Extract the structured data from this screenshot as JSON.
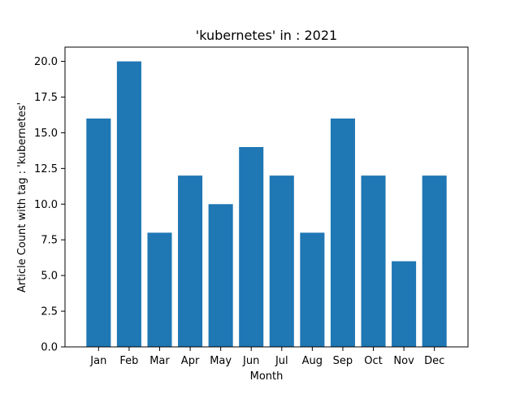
{
  "chart_data": {
    "type": "bar",
    "title": "'kubernetes' in : 2021",
    "xlabel": "Month",
    "ylabel": "Article Count with tag : 'kubernetes'",
    "categories": [
      "Jan",
      "Feb",
      "Mar",
      "Apr",
      "May",
      "Jun",
      "Jul",
      "Aug",
      "Sep",
      "Oct",
      "Nov",
      "Dec"
    ],
    "values": [
      16,
      20,
      8,
      12,
      10,
      14,
      12,
      8,
      16,
      12,
      6,
      12
    ],
    "ylim": [
      0,
      21
    ],
    "yticks": [
      "0.0",
      "2.5",
      "5.0",
      "7.5",
      "10.0",
      "12.5",
      "15.0",
      "17.5",
      "20.0"
    ],
    "bar_color": "#1f77b4",
    "grid": false,
    "legend": "none"
  }
}
